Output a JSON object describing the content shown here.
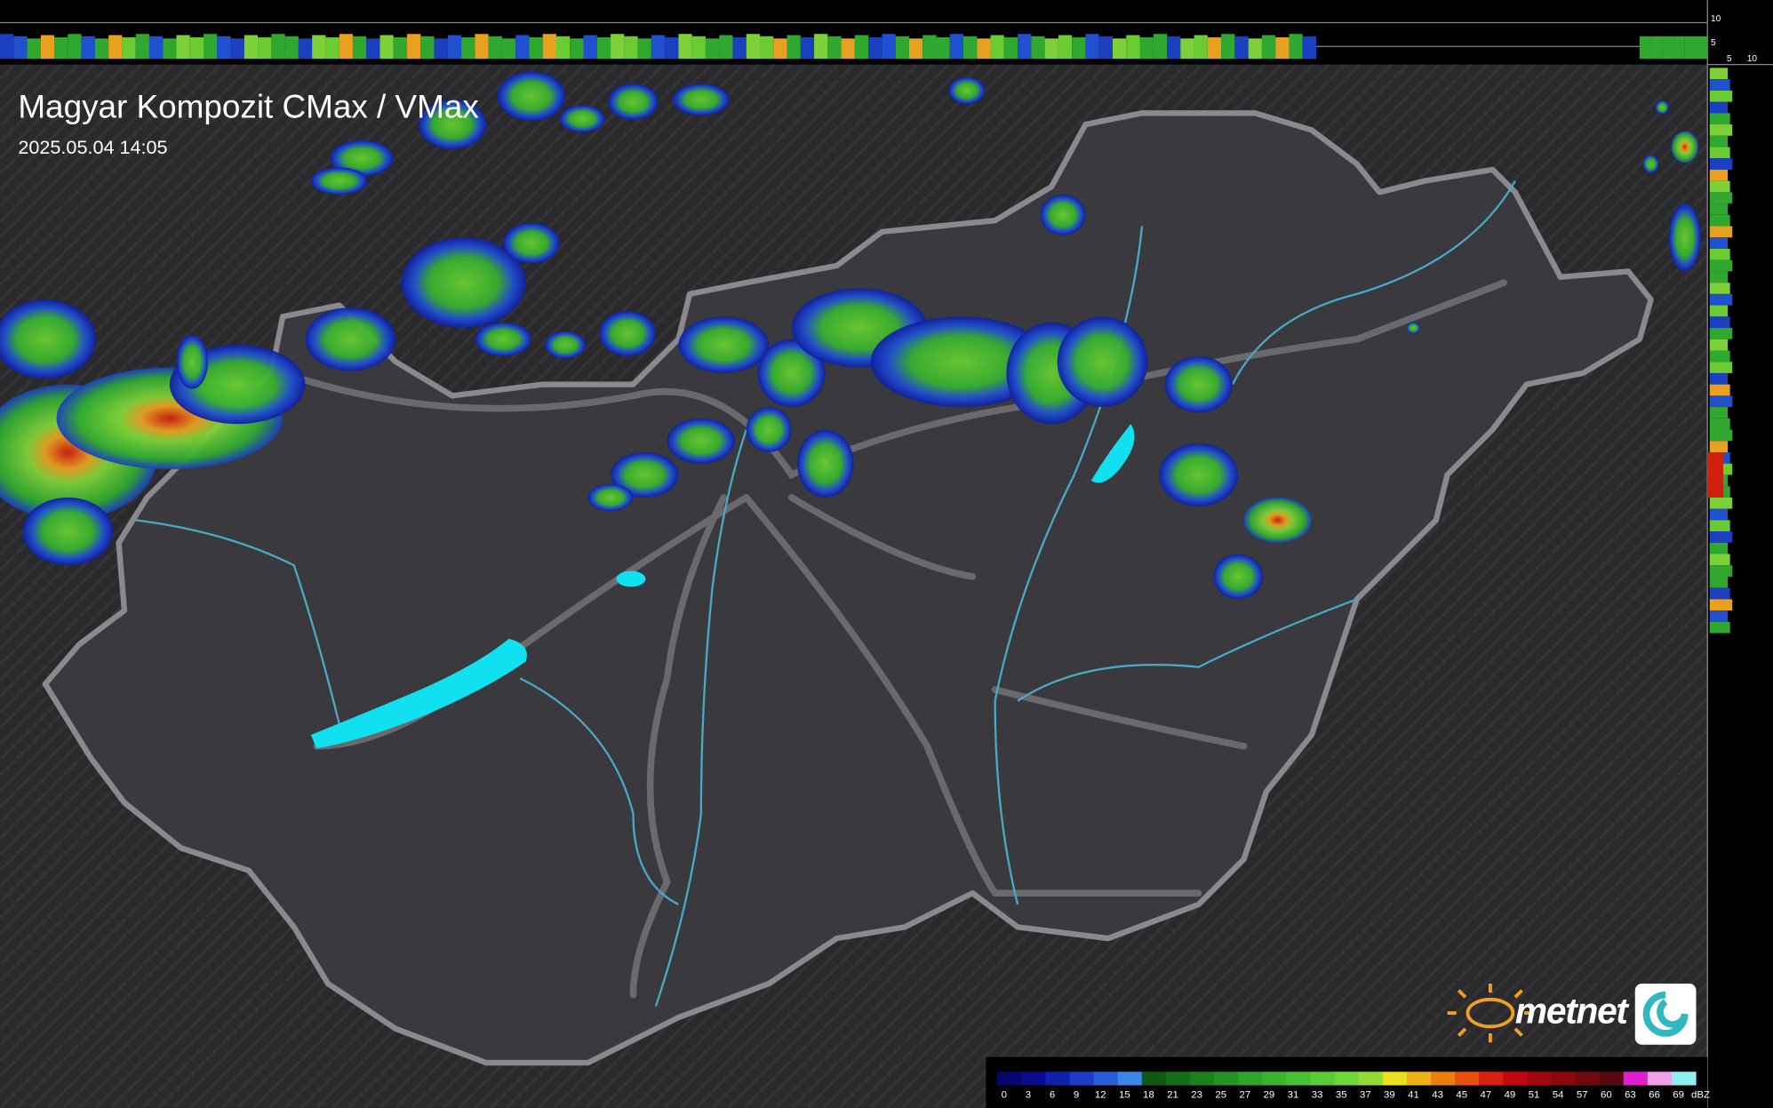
{
  "header": {
    "title": "Magyar Kompozit CMax / VMax",
    "timestamp": "2025.05.04 14:05"
  },
  "side_profile": {
    "top_labels": [
      "10",
      "5"
    ],
    "right_labels": [
      "5",
      "10"
    ]
  },
  "logo": {
    "text": "metnet"
  },
  "legend": {
    "labels": [
      "0",
      "3",
      "6",
      "9",
      "12",
      "15",
      "18",
      "21",
      "23",
      "25",
      "27",
      "29",
      "31",
      "33",
      "35",
      "37",
      "39",
      "41",
      "43",
      "45",
      "47",
      "49",
      "51",
      "54",
      "57",
      "60",
      "63",
      "66",
      "69"
    ],
    "unit": "dBZ",
    "colors": [
      "#06066e",
      "#0a0c8c",
      "#1020aa",
      "#1c3cc4",
      "#2a5cd6",
      "#3c86e6",
      "#0e5a12",
      "#146e16",
      "#1c801c",
      "#249224",
      "#2ea42a",
      "#3ab430",
      "#48c034",
      "#5acc38",
      "#70d63a",
      "#90dc34",
      "#e8e020",
      "#f0b018",
      "#e88010",
      "#e85010",
      "#d82010",
      "#c00810",
      "#a00810",
      "#880810",
      "#700810",
      "#580810",
      "#e020d0",
      "#f0a0e8",
      "#90f0f0"
    ]
  }
}
